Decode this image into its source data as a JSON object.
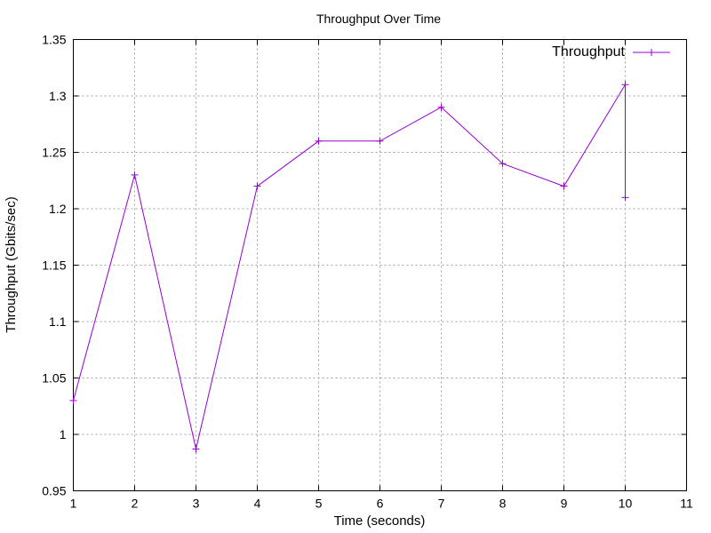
{
  "chart_data": {
    "type": "line",
    "title": "Throughput Over Time",
    "xlabel": "Time (seconds)",
    "ylabel": "Throughput (Gbits/sec)",
    "xlim": [
      1,
      11
    ],
    "ylim": [
      0.95,
      1.35
    ],
    "xticks": [
      "1",
      "2",
      "3",
      "4",
      "5",
      "6",
      "7",
      "8",
      "9",
      "10",
      "11"
    ],
    "yticks": [
      "0.95",
      "1",
      "1.05",
      "1.1",
      "1.15",
      "1.2",
      "1.25",
      "1.3",
      "1.35"
    ],
    "grid": true,
    "legend_position": "top-right",
    "series": [
      {
        "name": "Throughput",
        "color": "#9400d3",
        "points": [
          [
            1,
            1.03
          ],
          [
            2,
            1.23
          ],
          [
            3,
            0.987
          ],
          [
            4,
            1.22
          ],
          [
            5,
            1.26
          ],
          [
            6,
            1.26
          ],
          [
            7,
            1.29
          ],
          [
            8,
            1.24
          ],
          [
            9,
            1.22
          ],
          [
            10,
            1.31
          ],
          [
            10,
            1.21
          ]
        ]
      }
    ]
  }
}
